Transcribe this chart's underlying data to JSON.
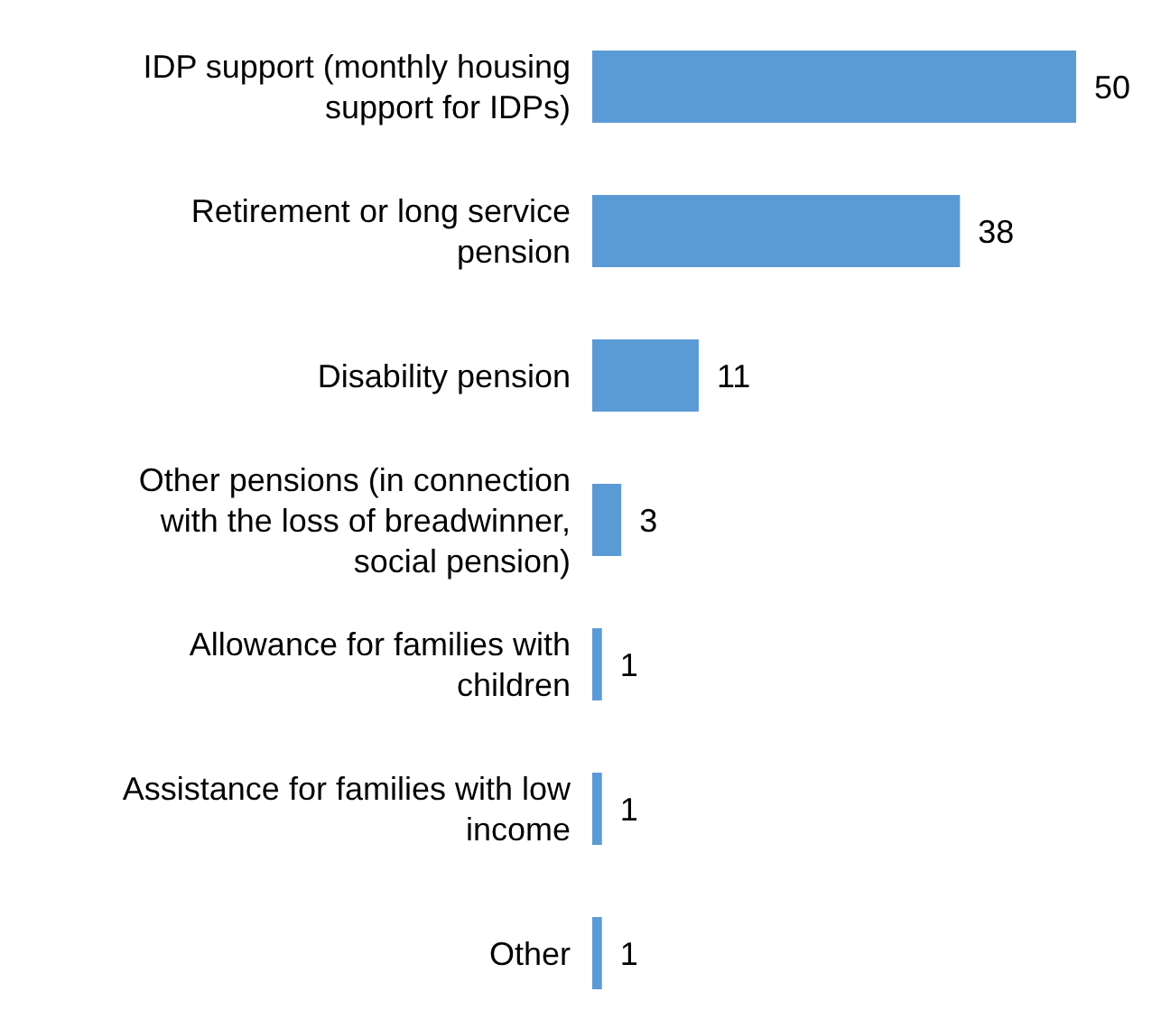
{
  "chart_data": {
    "type": "bar",
    "orientation": "horizontal",
    "categories": [
      "IDP support (monthly housing support for IDPs)",
      "Retirement or long service pension",
      "Disability pension",
      "Other pensions (in connection with the loss of breadwinner, social pension)",
      "Allowance for families with children",
      "Assistance for families with low income",
      "Other"
    ],
    "values": [
      50,
      38,
      11,
      3,
      1,
      1,
      1
    ],
    "color": "#5b9bd5",
    "data_labels": true
  }
}
